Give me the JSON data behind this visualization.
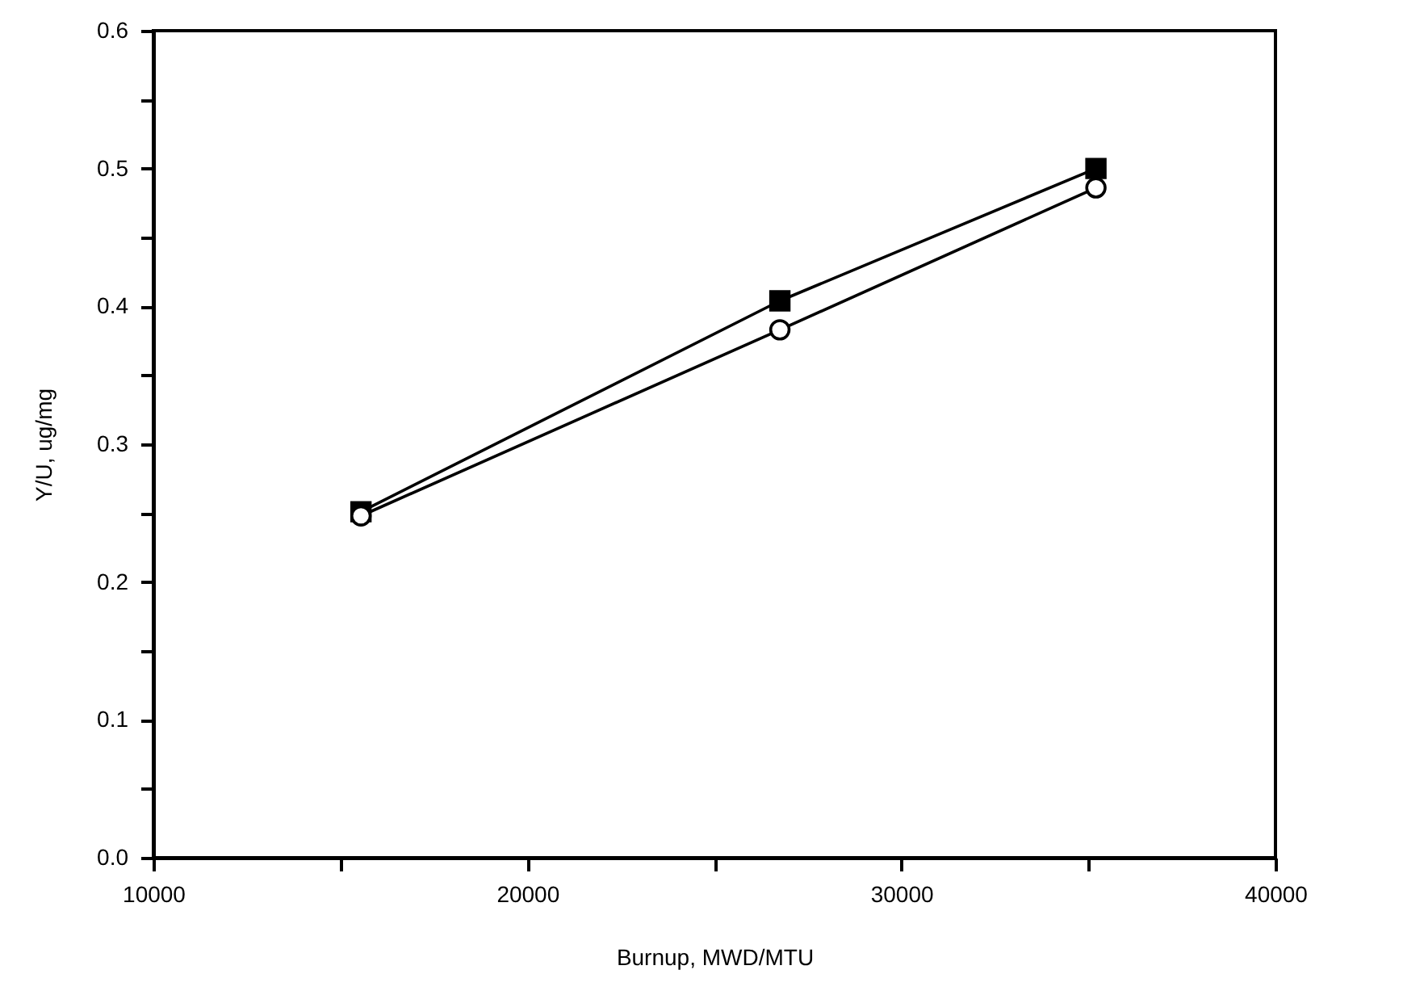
{
  "chart_data": {
    "type": "line",
    "xlabel": "Burnup, MWD/MTU",
    "ylabel": "Y/U, ug/mg",
    "x": [
      15550,
      26750,
      35200
    ],
    "series": [
      {
        "color": "#000000",
        "marker": "square",
        "values": [
          0.251,
          0.404,
          0.5
        ]
      },
      {
        "color": "#000000",
        "marker": "circle",
        "values": [
          0.248,
          0.383,
          0.486
        ]
      }
    ],
    "xlim": [
      10000,
      40000
    ],
    "xticks": [
      10000,
      {
        "value": 15000,
        "label": null
      },
      20000,
      {
        "value": 25000,
        "label": null
      },
      30000,
      {
        "value": 35000,
        "label": null
      },
      40000
    ],
    "ylim": [
      0,
      0.6
    ],
    "yticks": [
      {
        "value": 0,
        "label": "0.0"
      },
      {
        "value": 0.05,
        "label": null
      },
      0.1,
      {
        "value": 0.15,
        "label": null
      },
      0.2,
      {
        "value": 0.25,
        "label": null
      },
      0.3,
      {
        "value": 0.35,
        "label": null
      },
      0.4,
      {
        "value": 0.45,
        "label": null
      },
      0.5,
      {
        "value": 0.55,
        "label": null
      },
      0.6
    ],
    "grid": false,
    "line_style": "solid"
  }
}
